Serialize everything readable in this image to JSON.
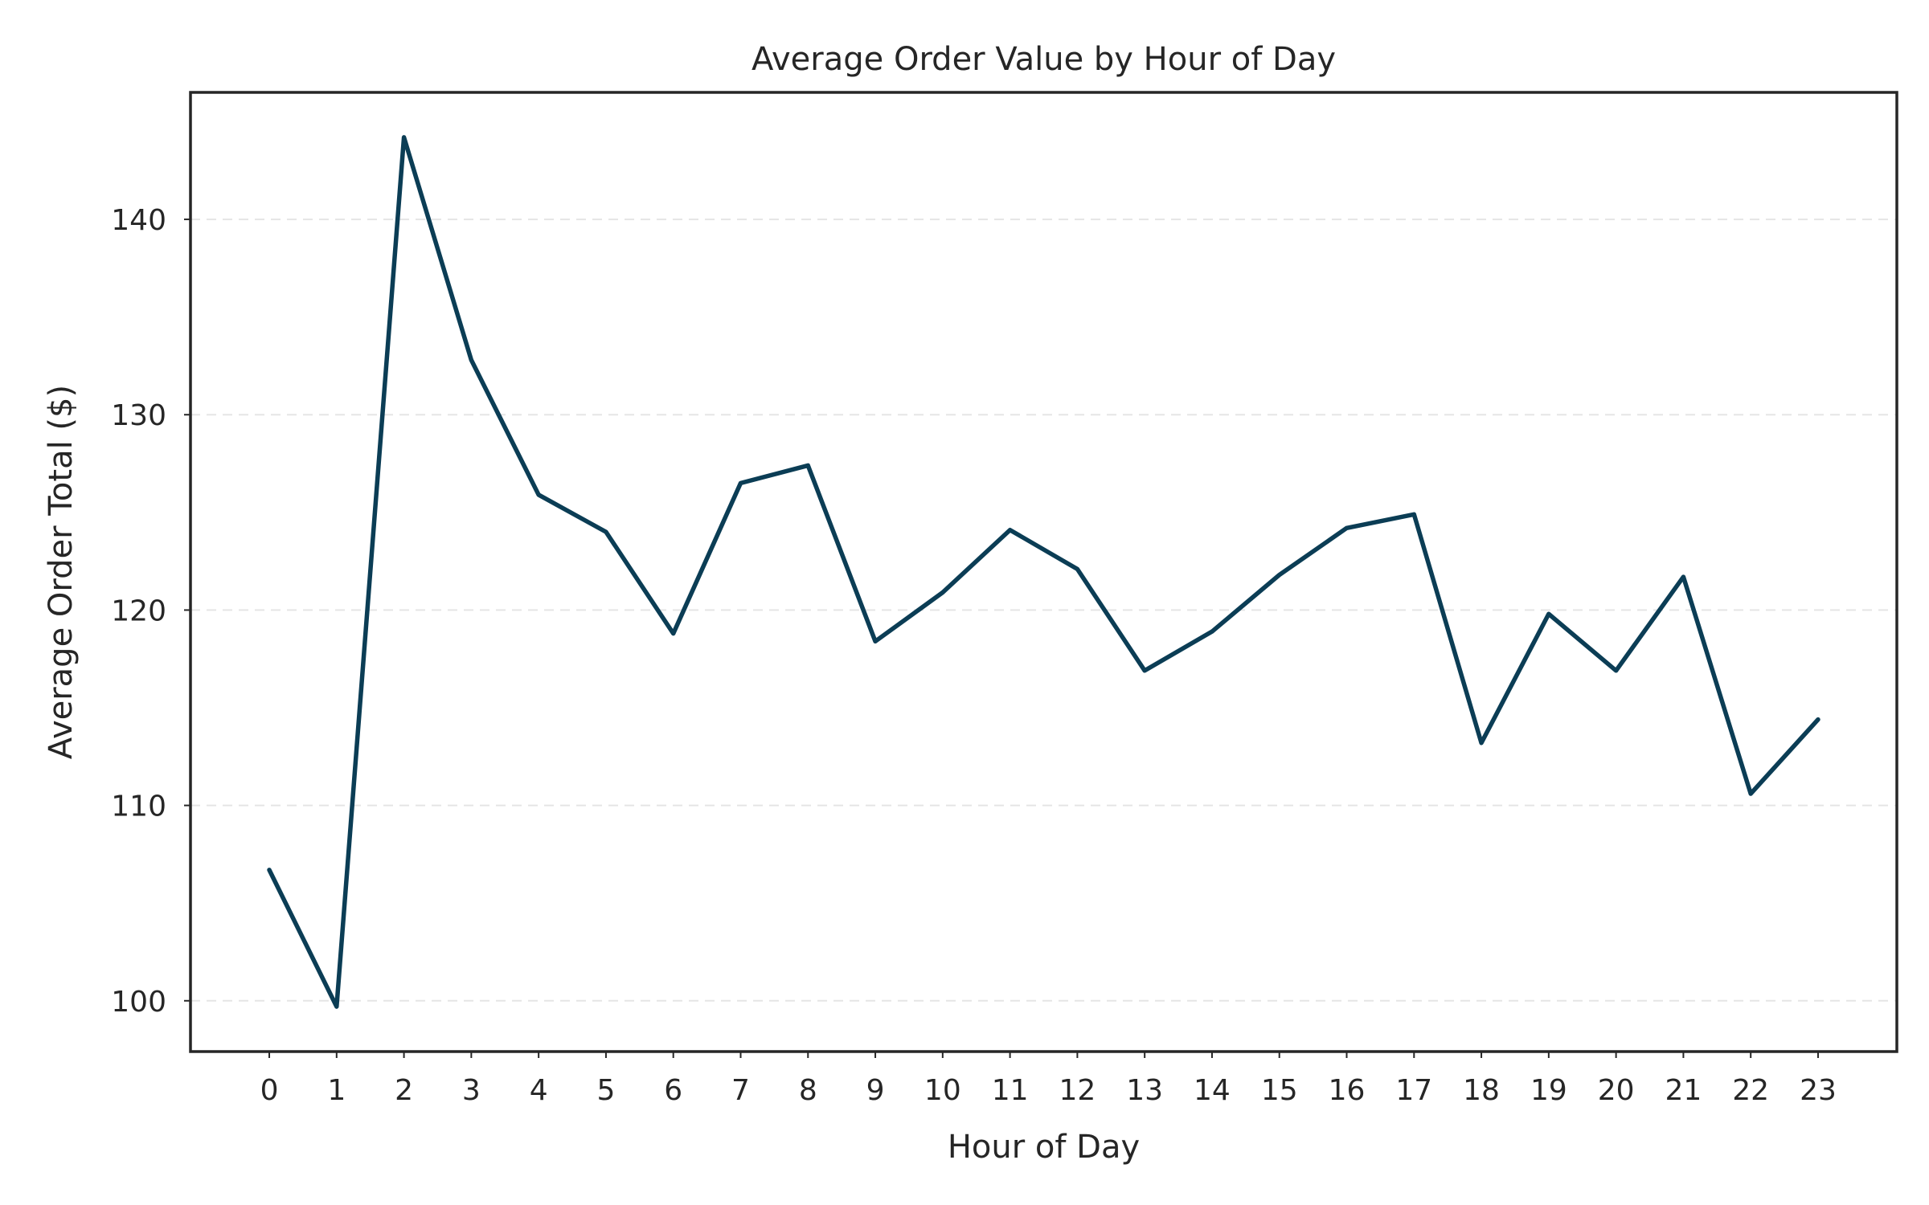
{
  "chart_data": {
    "type": "line",
    "title": "Average Order Value by Hour of Day",
    "xlabel": "Hour of Day",
    "ylabel": "Average Order Total ($)",
    "x": [
      0,
      1,
      2,
      3,
      4,
      5,
      6,
      7,
      8,
      9,
      10,
      11,
      12,
      13,
      14,
      15,
      16,
      17,
      18,
      19,
      20,
      21,
      22,
      23
    ],
    "x_tick_labels": [
      "0",
      "1",
      "2",
      "3",
      "4",
      "5",
      "6",
      "7",
      "8",
      "9",
      "10",
      "11",
      "12",
      "13",
      "14",
      "15",
      "16",
      "17",
      "18",
      "19",
      "20",
      "21",
      "22",
      "23"
    ],
    "series": [
      {
        "values": [
          106.7,
          99.7,
          144.2,
          132.8,
          125.9,
          124.0,
          118.8,
          126.5,
          127.4,
          118.4,
          120.9,
          124.1,
          122.1,
          116.9,
          118.9,
          121.8,
          124.2,
          124.9,
          113.2,
          119.8,
          116.9,
          121.7,
          110.6,
          114.4
        ],
        "color": "#0b3d55"
      }
    ],
    "y_ticks": [
      100,
      110,
      120,
      130,
      140
    ],
    "y_tick_labels": [
      "100",
      "110",
      "120",
      "130",
      "140"
    ],
    "xlim": [
      -1.17,
      24.17
    ],
    "ylim": [
      97.4,
      146.5
    ],
    "grid": "y-dashed",
    "legend": "none"
  }
}
